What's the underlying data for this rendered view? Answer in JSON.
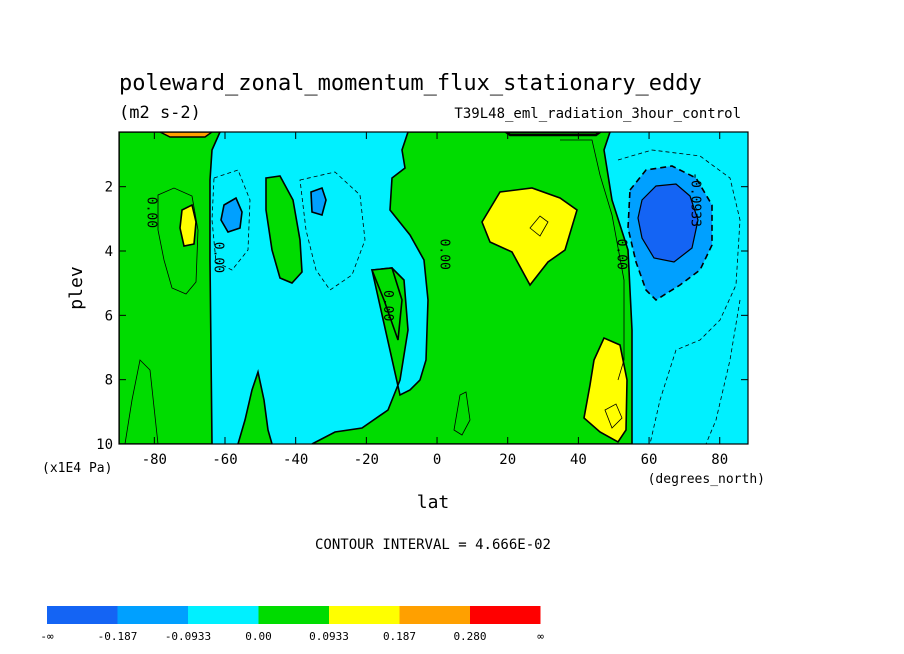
{
  "chart_data": {
    "type": "heatmap",
    "title": "poleward_zonal_momentum_flux_stationary_eddy",
    "units": "(m2 s-2)",
    "subtitle": "T39L48_eml_radiation_3hour_control",
    "xlabel": "lat",
    "x_units": "(degrees_north)",
    "ylabel": "plev",
    "y_units": "(x1E4 Pa)",
    "xlim": [
      -90,
      88
    ],
    "ylim": [
      10,
      0.3
    ],
    "x_ticks": [
      -80,
      -60,
      -40,
      -20,
      0,
      20,
      40,
      60,
      80
    ],
    "x_tick_labels": [
      "-80",
      "-60",
      "-40",
      "-20",
      "0",
      "20",
      "40",
      "60",
      "80"
    ],
    "y_ticks": [
      2,
      4,
      6,
      8,
      10
    ],
    "y_tick_labels": [
      "2",
      "4",
      "6",
      "8",
      "10"
    ],
    "contour_interval_text": "CONTOUR INTERVAL = 4.666E-02",
    "contour_labels": [
      {
        "text": "0.00",
        "lat": -82,
        "plev": 2.8
      },
      {
        "text": "0.00",
        "lat": -63,
        "plev": 4.2
      },
      {
        "text": "0.00",
        "lat": -15,
        "plev": 5.7
      },
      {
        "text": "0.00",
        "lat": 1,
        "plev": 4.1
      },
      {
        "text": "0.00",
        "lat": 51,
        "plev": 4.1
      },
      {
        "text": "-0.0933",
        "lat": 72,
        "plev": 2.4
      }
    ],
    "levels": [
      -0.187,
      -0.0933,
      0.0,
      0.0933,
      0.187,
      0.28
    ],
    "colorbar": {
      "colors": [
        "#1464f4",
        "#00a0ff",
        "#00f0ff",
        "#00dc00",
        "#ffff00",
        "#ffa000",
        "#ff0000"
      ],
      "labels": [
        "-∞",
        "-0.187",
        "-0.0933",
        "0.00",
        "0.0933",
        "0.187",
        "0.280",
        "∞"
      ]
    },
    "regions": [
      {
        "name": "neg-small-sh",
        "lat": -57,
        "plev": 2.5,
        "value": -0.12
      },
      {
        "name": "neg-small-mid",
        "lat": -31,
        "plev": 2.2,
        "value": -0.11
      },
      {
        "name": "neg-strong-nh",
        "lat": 68,
        "plev": 3.0,
        "value": -0.25
      },
      {
        "name": "pos-sh",
        "lat": -70,
        "plev": 3.0,
        "value": 0.12
      },
      {
        "name": "pos-nh-upper",
        "lat": 30,
        "plev": 3.0,
        "value": 0.14
      },
      {
        "name": "pos-nh-lower",
        "lat": 48,
        "plev": 8.5,
        "value": 0.15
      },
      {
        "name": "pos-top-sh",
        "lat": -68,
        "plev": 0.4,
        "value": 0.22
      }
    ]
  }
}
